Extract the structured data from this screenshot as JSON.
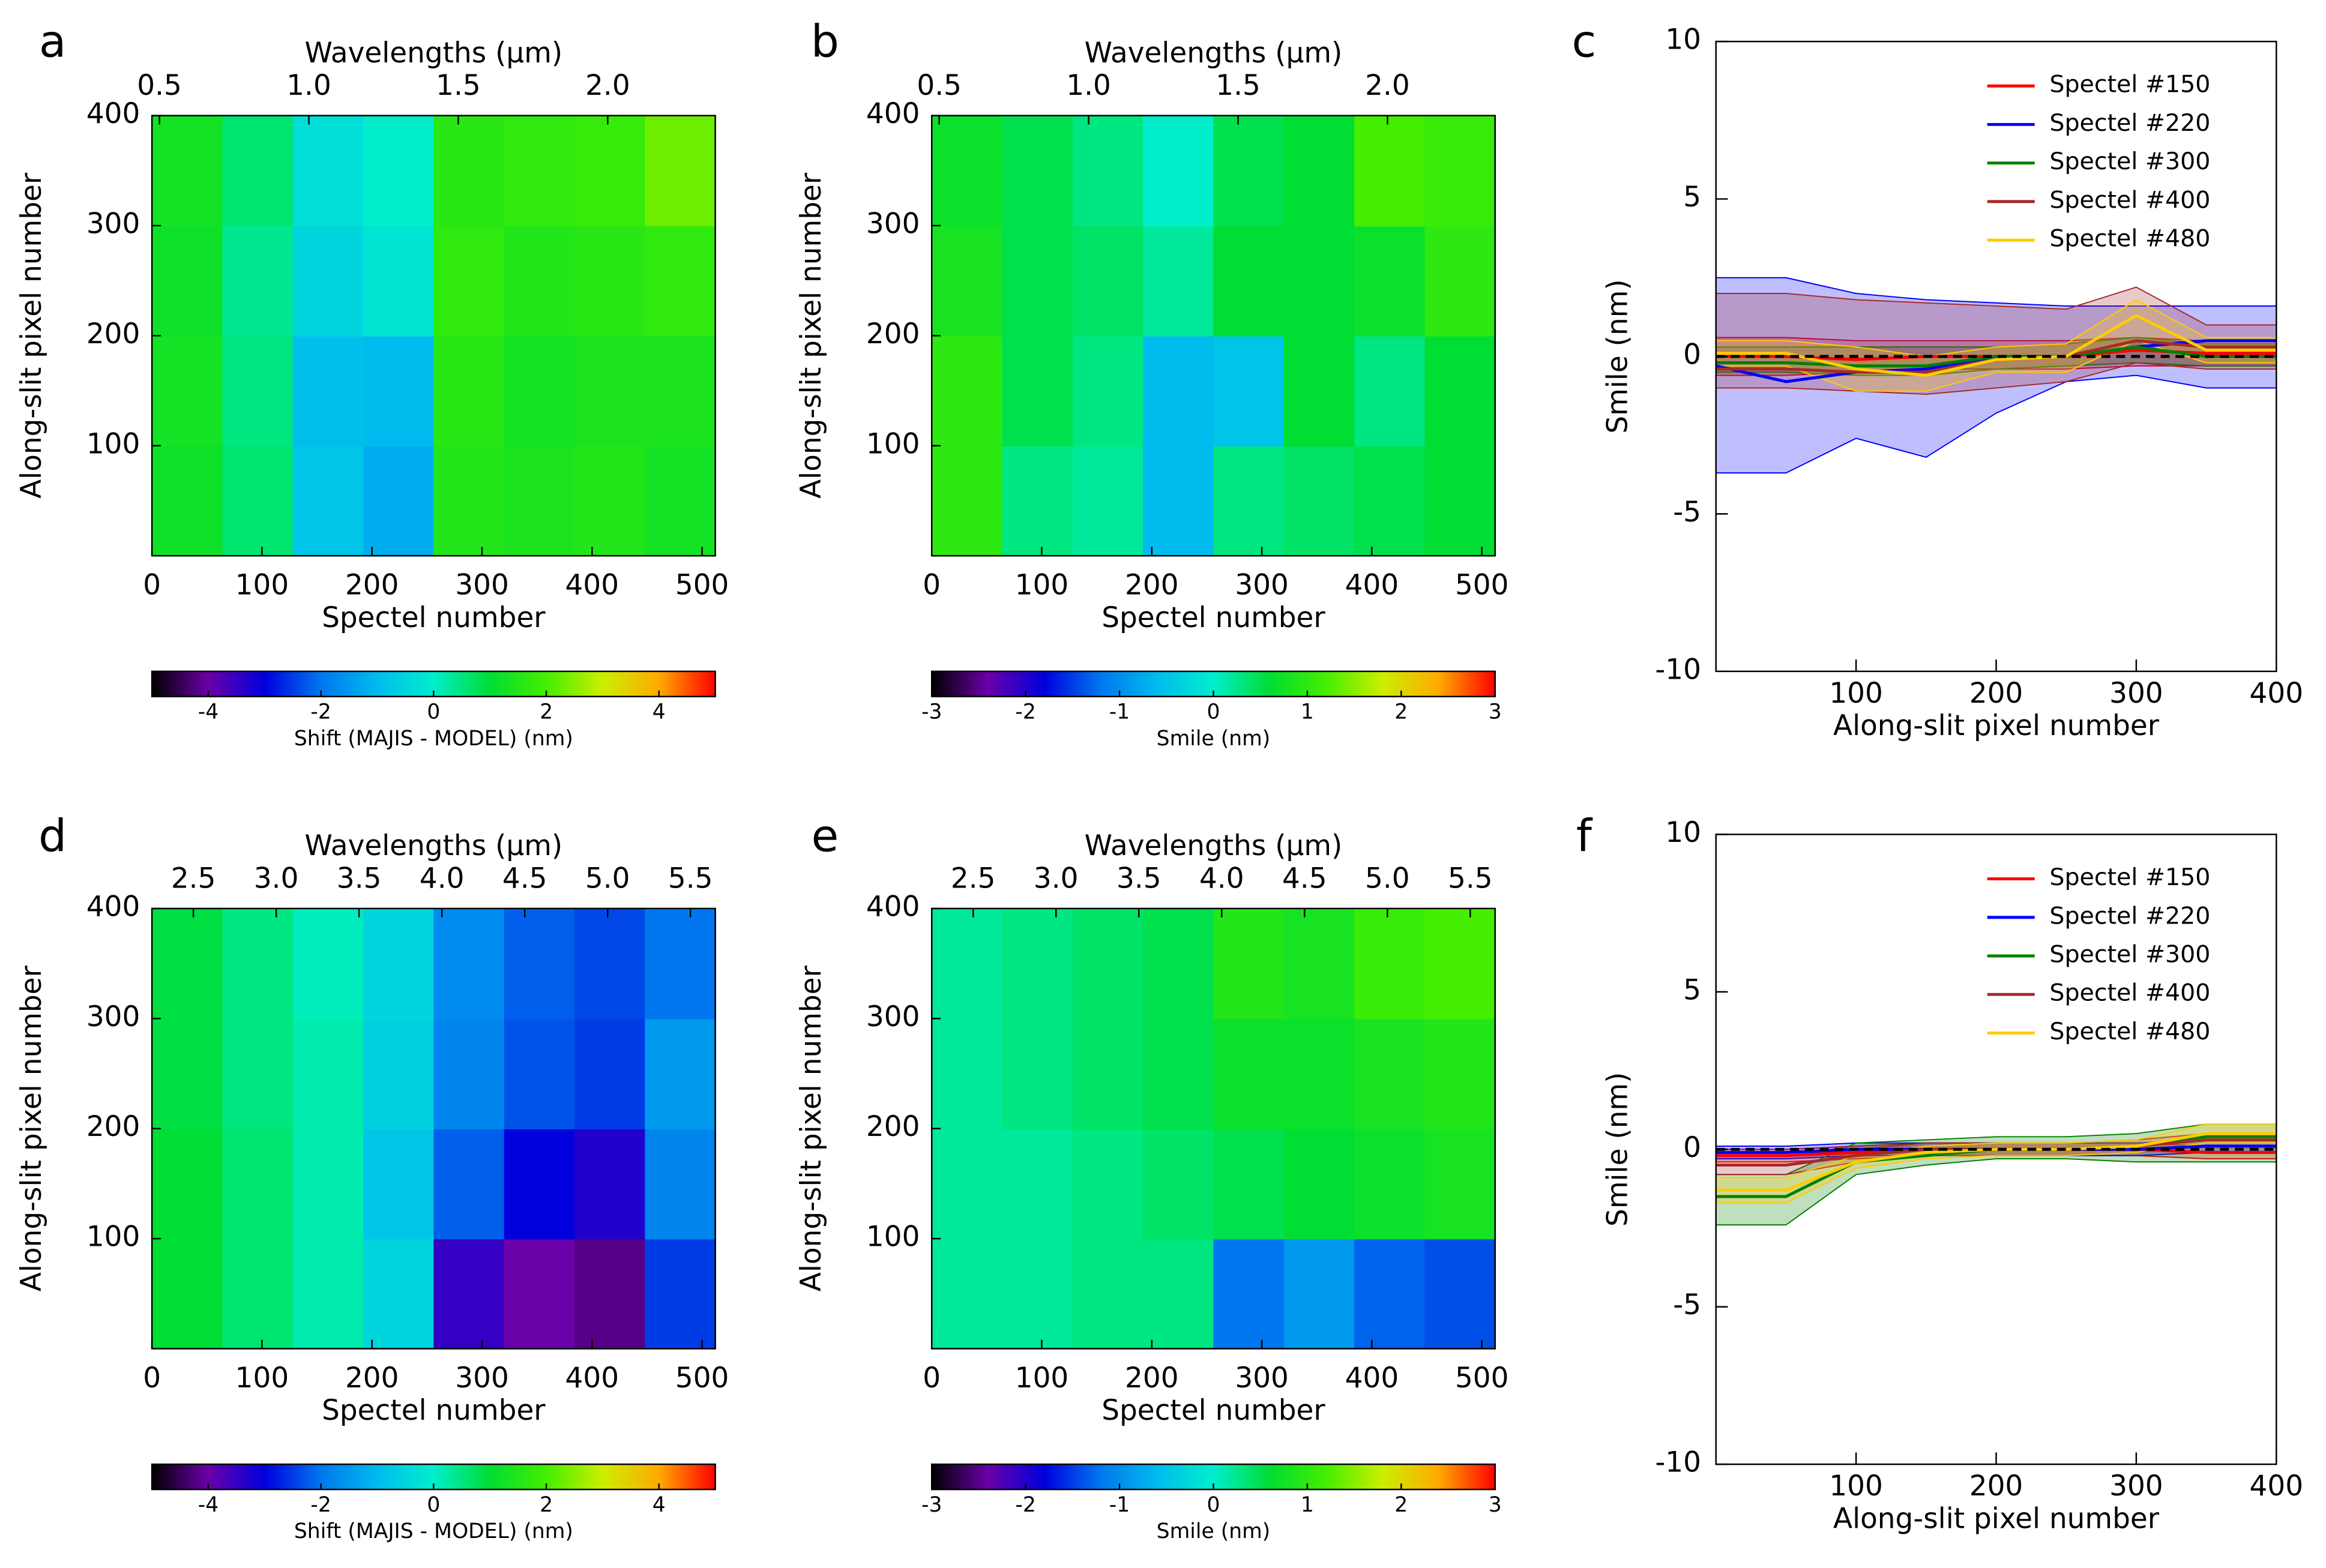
{
  "chart_data": [
    {
      "type": "heatmap",
      "label": "a",
      "x2label": "Wavelengths (μm)",
      "xlabel": "Spectel number",
      "ylabel": "Along-slit pixel number",
      "xlim": [
        0,
        512
      ],
      "xticks": [
        0,
        100,
        200,
        300,
        400,
        500
      ],
      "ylim": [
        0,
        400
      ],
      "yticks": [
        100,
        200,
        300,
        400
      ],
      "x2lim": [
        0.475,
        2.36
      ],
      "x2ticks": [
        0.5,
        {
          "value": 1,
          "label": "1.0"
        },
        1.5,
        {
          "value": 2,
          "label": "2.0"
        }
      ],
      "x_bins": [
        0,
        64,
        128,
        192,
        256,
        320,
        384,
        448,
        512
      ],
      "y_bins": [
        0,
        100,
        200,
        300,
        400
      ],
      "z": [
        [
          1.2,
          0.6,
          -0.8,
          -1.2,
          1.5,
          1.4,
          1.5,
          1.3
        ],
        [
          1.3,
          0.5,
          -0.9,
          -1.0,
          1.6,
          1.3,
          1.4,
          1.4
        ],
        [
          1.2,
          0.4,
          -0.5,
          -0.2,
          1.7,
          1.5,
          1.6,
          1.7
        ],
        [
          1.3,
          0.6,
          -0.3,
          0.0,
          1.6,
          1.7,
          1.8,
          2.3
        ]
      ],
      "colorbar": {
        "label": "Shift (MAJIS - MODEL) (nm)",
        "lim": [
          -5,
          5
        ],
        "ticks": [
          -4,
          -2,
          0,
          2,
          4
        ],
        "colors": [
          "#000000",
          "#6a00a8",
          "#0000dd",
          "#0077ee",
          "#00bbee",
          "#00eecc",
          "#00dd33",
          "#44ee00",
          "#ccee00",
          "#ffaa00",
          "#ff0000"
        ]
      }
    },
    {
      "type": "heatmap",
      "label": "b",
      "x2label": "Wavelengths (μm)",
      "xlabel": "Spectel number",
      "ylabel": "Along-slit pixel number",
      "xlim": [
        0,
        512
      ],
      "xticks": [
        0,
        100,
        200,
        300,
        400,
        500
      ],
      "ylim": [
        0,
        400
      ],
      "yticks": [
        100,
        200,
        300,
        400
      ],
      "x2lim": [
        0.475,
        2.36
      ],
      "x2ticks": [
        0.5,
        {
          "value": 1,
          "label": "1.0"
        },
        1.5,
        {
          "value": 2,
          "label": "2.0"
        }
      ],
      "x_bins": [
        0,
        64,
        128,
        192,
        256,
        320,
        384,
        448,
        512
      ],
      "y_bins": [
        0,
        100,
        200,
        300,
        400
      ],
      "z": [
        [
          1.0,
          0.3,
          0.2,
          -0.6,
          0.3,
          0.4,
          0.5,
          0.6
        ],
        [
          1.0,
          0.5,
          0.3,
          -0.6,
          -0.5,
          0.6,
          0.3,
          0.6
        ],
        [
          0.8,
          0.5,
          0.4,
          0.2,
          0.6,
          0.6,
          0.7,
          1.0
        ],
        [
          0.7,
          0.5,
          0.3,
          0.0,
          0.5,
          0.6,
          1.2,
          1.1
        ]
      ],
      "colorbar": {
        "label": "Smile (nm)",
        "lim": [
          -3,
          3
        ],
        "ticks": [
          -3,
          -2,
          -1,
          0,
          1,
          2,
          3
        ],
        "colors": [
          "#000000",
          "#6a00a8",
          "#0000dd",
          "#0077ee",
          "#00bbee",
          "#00eecc",
          "#00dd33",
          "#44ee00",
          "#ccee00",
          "#ffaa00",
          "#ff0000"
        ]
      }
    },
    {
      "type": "line",
      "label": "c",
      "xlabel": "Along-slit pixel number",
      "ylabel": "Smile (nm)",
      "xlim": [
        0,
        400
      ],
      "xticks": [
        100,
        200,
        300,
        400
      ],
      "ylim": [
        -10,
        10
      ],
      "yticks": [
        -10,
        -5,
        0,
        5,
        10
      ],
      "hline": 0,
      "legend": "upper right",
      "x": [
        0,
        50,
        100,
        150,
        200,
        250,
        300,
        350,
        400
      ],
      "series": [
        {
          "name": "Spectel #150",
          "color": "#ff0000",
          "values": [
            0,
            0,
            -0.1,
            0,
            0,
            0,
            0.2,
            0.1,
            0.1
          ],
          "lower": [
            -0.6,
            -0.6,
            -0.5,
            -0.4,
            -0.4,
            -0.4,
            -0.3,
            -0.3,
            -0.3
          ],
          "upper": [
            0.6,
            0.6,
            0.5,
            0.5,
            0.5,
            0.5,
            0.6,
            0.5,
            0.5
          ]
        },
        {
          "name": "Spectel #220",
          "color": "#0000ff",
          "values": [
            -0.3,
            -0.8,
            -0.5,
            -0.4,
            0,
            0,
            0.3,
            0.5,
            0.5
          ],
          "lower": [
            -3.7,
            -3.7,
            -2.6,
            -3.2,
            -1.8,
            -0.8,
            -0.6,
            -1.0,
            -1.0
          ],
          "upper": [
            2.5,
            2.5,
            2.0,
            1.8,
            1.7,
            1.6,
            1.6,
            1.6,
            1.6
          ]
        },
        {
          "name": "Spectel #300",
          "color": "#008000",
          "values": [
            -0.2,
            -0.2,
            -0.3,
            -0.3,
            0,
            0,
            0.3,
            0,
            0
          ],
          "lower": [
            -0.5,
            -0.5,
            -0.6,
            -0.6,
            -0.4,
            -0.3,
            -0.2,
            -0.3,
            -0.3
          ],
          "upper": [
            0.3,
            0.3,
            0.3,
            0.3,
            0.3,
            0.4,
            0.6,
            0.4,
            0.4
          ]
        },
        {
          "name": "Spectel #400",
          "color": "#a52a2a",
          "values": [
            -0.4,
            -0.4,
            -0.5,
            -0.5,
            -0.1,
            0,
            0.5,
            0.3,
            0.3
          ],
          "lower": [
            -1.0,
            -1.0,
            -1.1,
            -1.2,
            -1.0,
            -0.8,
            -0.2,
            -0.4,
            -0.4
          ],
          "upper": [
            2.0,
            2.0,
            1.8,
            1.7,
            1.6,
            1.5,
            2.2,
            1.0,
            1.0
          ]
        },
        {
          "name": "Spectel #480",
          "color": "#ffcc00",
          "values": [
            0.1,
            0.1,
            -0.4,
            -0.6,
            -0.1,
            0,
            1.3,
            0.2,
            0.2
          ],
          "lower": [
            -0.3,
            -0.3,
            -1.1,
            -1.1,
            -0.5,
            -0.5,
            0.5,
            -0.2,
            -0.2
          ],
          "upper": [
            0.5,
            0.5,
            0.3,
            0.0,
            0.3,
            0.4,
            1.8,
            0.6,
            0.6
          ]
        }
      ]
    },
    {
      "type": "heatmap",
      "label": "d",
      "x2label": "Wavelengths (μm)",
      "xlabel": "Spectel number",
      "ylabel": "Along-slit pixel number",
      "xlim": [
        0,
        512
      ],
      "xticks": [
        0,
        100,
        200,
        300,
        400,
        500
      ],
      "ylim": [
        0,
        400
      ],
      "yticks": [
        100,
        200,
        300,
        400
      ],
      "x2lim": [
        2.25,
        5.65
      ],
      "x2ticks": [
        2.5,
        {
          "value": 3,
          "label": "3.0"
        },
        3.5,
        {
          "value": 4,
          "label": "4.0"
        },
        4.5,
        {
          "value": 5,
          "label": "5.0"
        },
        5.5
      ],
      "x_bins": [
        0,
        64,
        128,
        192,
        256,
        320,
        384,
        448,
        512
      ],
      "y_bins": [
        0,
        100,
        200,
        300,
        400
      ],
      "z": [
        [
          1.0,
          0.6,
          0.2,
          -0.5,
          -3.5,
          -4.0,
          -4.2,
          -2.5
        ],
        [
          1.0,
          0.6,
          0.2,
          -0.8,
          -2.2,
          -3.0,
          -3.3,
          -1.8
        ],
        [
          0.9,
          0.5,
          0.2,
          -0.6,
          -1.8,
          -2.3,
          -2.5,
          -1.5
        ],
        [
          0.9,
          0.5,
          0.1,
          -0.5,
          -1.7,
          -2.2,
          -2.4,
          -2.0
        ]
      ],
      "colorbar": {
        "label": "Shift (MAJIS - MODEL) (nm)",
        "lim": [
          -5,
          5
        ],
        "ticks": [
          -4,
          -2,
          0,
          2,
          4
        ],
        "colors": [
          "#000000",
          "#6a00a8",
          "#0000dd",
          "#0077ee",
          "#00bbee",
          "#00eecc",
          "#00dd33",
          "#44ee00",
          "#ccee00",
          "#ffaa00",
          "#ff0000"
        ]
      }
    },
    {
      "type": "heatmap",
      "label": "e",
      "x2label": "Wavelengths (μm)",
      "xlabel": "Spectel number",
      "ylabel": "Along-slit pixel number",
      "xlim": [
        0,
        512
      ],
      "xticks": [
        0,
        100,
        200,
        300,
        400,
        500
      ],
      "ylim": [
        0,
        400
      ],
      "yticks": [
        100,
        200,
        300,
        400
      ],
      "x2lim": [
        2.25,
        5.65
      ],
      "x2ticks": [
        2.5,
        {
          "value": 3,
          "label": "3.0"
        },
        3.5,
        {
          "value": 4,
          "label": "4.0"
        },
        4.5,
        {
          "value": 5,
          "label": "5.0"
        },
        5.5
      ],
      "x_bins": [
        0,
        64,
        128,
        192,
        256,
        320,
        384,
        448,
        512
      ],
      "y_bins": [
        0,
        100,
        200,
        300,
        400
      ],
      "z": [
        [
          0.2,
          0.2,
          0.3,
          0.3,
          -1.2,
          -0.9,
          -1.3,
          -1.4
        ],
        [
          0.2,
          0.2,
          0.3,
          0.4,
          0.5,
          0.6,
          0.7,
          0.8
        ],
        [
          0.2,
          0.3,
          0.4,
          0.5,
          0.7,
          0.7,
          0.8,
          0.9
        ],
        [
          0.2,
          0.3,
          0.4,
          0.5,
          0.9,
          0.8,
          1.1,
          1.2
        ]
      ],
      "colorbar": {
        "label": "Smile (nm)",
        "lim": [
          -3,
          3
        ],
        "ticks": [
          -3,
          -2,
          -1,
          0,
          1,
          2,
          3
        ],
        "colors": [
          "#000000",
          "#6a00a8",
          "#0000dd",
          "#0077ee",
          "#00bbee",
          "#00eecc",
          "#00dd33",
          "#44ee00",
          "#ccee00",
          "#ffaa00",
          "#ff0000"
        ]
      }
    },
    {
      "type": "line",
      "label": "f",
      "xlabel": "Along-slit pixel number",
      "ylabel": "Smile (nm)",
      "xlim": [
        0,
        400
      ],
      "xticks": [
        100,
        200,
        300,
        400
      ],
      "ylim": [
        -10,
        10
      ],
      "yticks": [
        -10,
        -5,
        0,
        5,
        10
      ],
      "hline": 0,
      "legend": "upper right",
      "x": [
        0,
        50,
        100,
        150,
        200,
        250,
        300,
        350,
        400
      ],
      "series": [
        {
          "name": "Spectel #150",
          "color": "#ff0000",
          "values": [
            -0.2,
            -0.2,
            -0.1,
            0,
            0,
            0,
            0,
            -0.1,
            -0.1
          ],
          "lower": [
            -0.4,
            -0.4,
            -0.3,
            -0.2,
            -0.2,
            -0.2,
            -0.2,
            -0.3,
            -0.3
          ],
          "upper": [
            0,
            0,
            0.1,
            0.2,
            0.2,
            0.2,
            0.2,
            0.1,
            0.1
          ]
        },
        {
          "name": "Spectel #220",
          "color": "#0000ff",
          "values": [
            -0.1,
            -0.1,
            0,
            0,
            0,
            0,
            0,
            0.1,
            0.1
          ],
          "lower": [
            -0.3,
            -0.3,
            -0.2,
            -0.2,
            -0.2,
            -0.2,
            -0.2,
            -0.1,
            -0.1
          ],
          "upper": [
            0.1,
            0.1,
            0.2,
            0.2,
            0.2,
            0.2,
            0.2,
            0.3,
            0.3
          ]
        },
        {
          "name": "Spectel #300",
          "color": "#008000",
          "values": [
            -1.5,
            -1.5,
            -0.4,
            -0.2,
            0,
            0,
            0.1,
            0.4,
            0.4
          ],
          "lower": [
            -2.4,
            -2.4,
            -0.8,
            -0.5,
            -0.3,
            -0.3,
            -0.4,
            -0.4,
            -0.4
          ],
          "upper": [
            -0.8,
            -0.8,
            0.2,
            0.3,
            0.4,
            0.4,
            0.5,
            0.8,
            0.8
          ]
        },
        {
          "name": "Spectel #400",
          "color": "#a52a2a",
          "values": [
            -0.5,
            -0.5,
            -0.2,
            0,
            0,
            0,
            0.1,
            0.3,
            0.3
          ],
          "lower": [
            -0.8,
            -0.8,
            -0.4,
            -0.2,
            -0.2,
            -0.2,
            -0.1,
            0.1,
            0.1
          ],
          "upper": [
            -0.2,
            -0.2,
            0,
            0.2,
            0.2,
            0.2,
            0.3,
            0.5,
            0.5
          ]
        },
        {
          "name": "Spectel #480",
          "color": "#ffcc00",
          "values": [
            -1.3,
            -1.3,
            -0.4,
            -0.1,
            0,
            0,
            0.1,
            0.5,
            0.5
          ],
          "lower": [
            -1.7,
            -1.7,
            -0.6,
            -0.3,
            -0.2,
            -0.2,
            -0.1,
            0.2,
            0.2
          ],
          "upper": [
            -0.9,
            -0.9,
            -0.2,
            0.1,
            0.2,
            0.2,
            0.3,
            0.8,
            0.8
          ]
        }
      ]
    }
  ]
}
